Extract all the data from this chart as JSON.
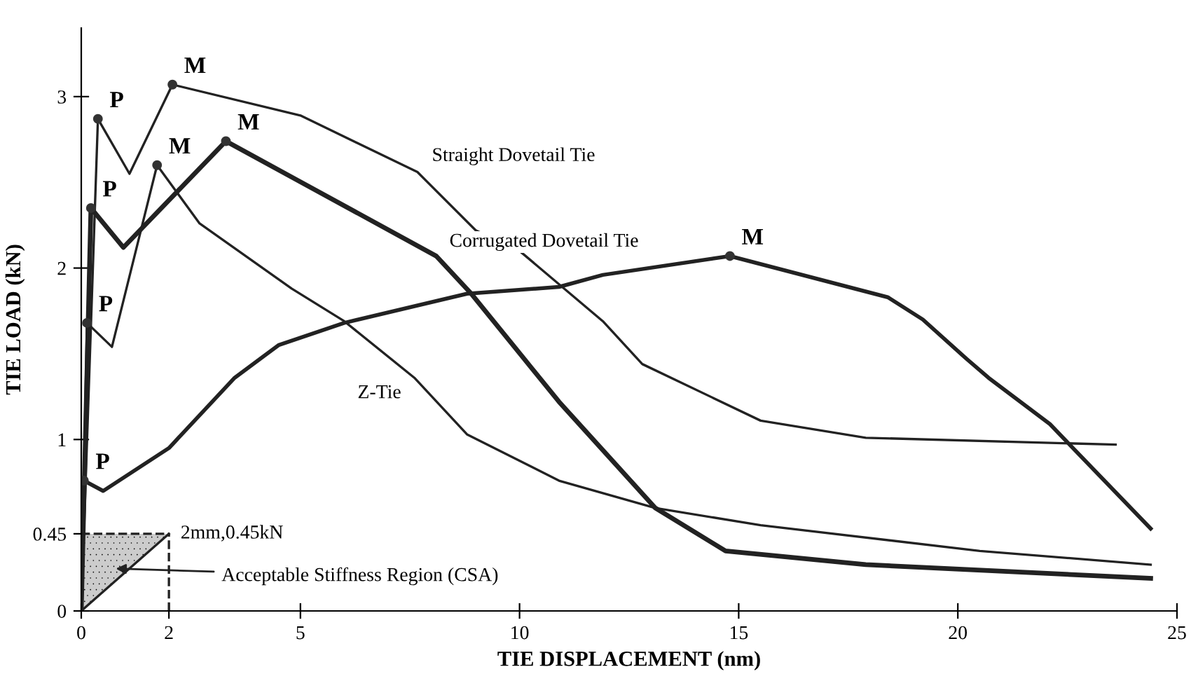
{
  "chart_data": {
    "type": "line",
    "xlabel": "TIE DISPLACEMENT (nm)",
    "ylabel": "TIE LOAD (kN)",
    "xlim": [
      0,
      25
    ],
    "ylim": [
      0,
      3.4
    ],
    "xticks": [
      0,
      2,
      5,
      10,
      15,
      20,
      25
    ],
    "yticks": [
      0,
      0.45,
      1,
      2,
      3
    ],
    "grid": false,
    "legend": false,
    "marker": "none",
    "line_style": "solid",
    "series": [
      {
        "name": "Straight Dovetail Tie",
        "color": "#222222",
        "x": [
          0,
          0.38,
          1.1,
          2.08,
          5,
          7.67,
          9,
          10,
          11.9,
          12.8,
          15.5,
          17.9,
          23.6
        ],
        "values": [
          0,
          2.87,
          2.55,
          3.07,
          2.89,
          2.56,
          2.22,
          2.1,
          1.69,
          1.44,
          1.11,
          1.01,
          0.97
        ]
      },
      {
        "name": "Corrugated Dovetail Tie",
        "color": "#222222",
        "x": [
          0,
          0.22,
          0.96,
          3.3,
          8.1,
          8.9,
          10.9,
          13.1,
          14.7,
          17.9,
          24.4
        ],
        "values": [
          0,
          2.35,
          2.12,
          2.74,
          2.07,
          1.85,
          1.22,
          0.6,
          0.35,
          0.27,
          0.19
        ]
      },
      {
        "name": "Z-Tie",
        "color": "#222222",
        "x": [
          0,
          0.13,
          0.7,
          1.73,
          2.7,
          4.8,
          6,
          7.6,
          8.8,
          10.9,
          13.1,
          15.5,
          20.5,
          24.4
        ],
        "values": [
          0,
          1.68,
          1.54,
          2.6,
          2.26,
          1.88,
          1.69,
          1.36,
          1.03,
          0.76,
          0.6,
          0.5,
          0.35,
          0.27
        ]
      },
      {
        "color": "#222222",
        "x": [
          0,
          2
        ],
        "values": [
          0,
          0.45
        ]
      },
      {
        "color": "#222222",
        "x": [
          0,
          0.06,
          0.5,
          2,
          3.5,
          4.5,
          6,
          8.8,
          10.9,
          11.9,
          14.8,
          18.4,
          19.2,
          20.2,
          20.7,
          22.1,
          24.4
        ],
        "values": [
          0,
          0.76,
          0.7,
          0.95,
          1.36,
          1.55,
          1.68,
          1.85,
          1.89,
          1.96,
          2.07,
          1.83,
          1.7,
          1.47,
          1.36,
          1.09,
          0.48
        ]
      }
    ],
    "annotations": [
      {
        "text": "P",
        "x": 0.38,
        "y": 2.87
      },
      {
        "text": "M",
        "x": 2.08,
        "y": 3.07
      },
      {
        "text": "P",
        "x": 0.22,
        "y": 2.35
      },
      {
        "text": "M",
        "x": 3.3,
        "y": 2.74
      },
      {
        "text": "P",
        "x": 0.13,
        "y": 1.68
      },
      {
        "text": "M",
        "x": 1.73,
        "y": 2.6
      },
      {
        "text": "P",
        "x": 0.06,
        "y": 0.76
      },
      {
        "text": "M",
        "x": 14.8,
        "y": 2.07
      },
      {
        "text": "2mm,0.45kN",
        "x": 2,
        "y": 0.45
      },
      "Acceptable Stiffness Region (CSA)"
    ]
  }
}
